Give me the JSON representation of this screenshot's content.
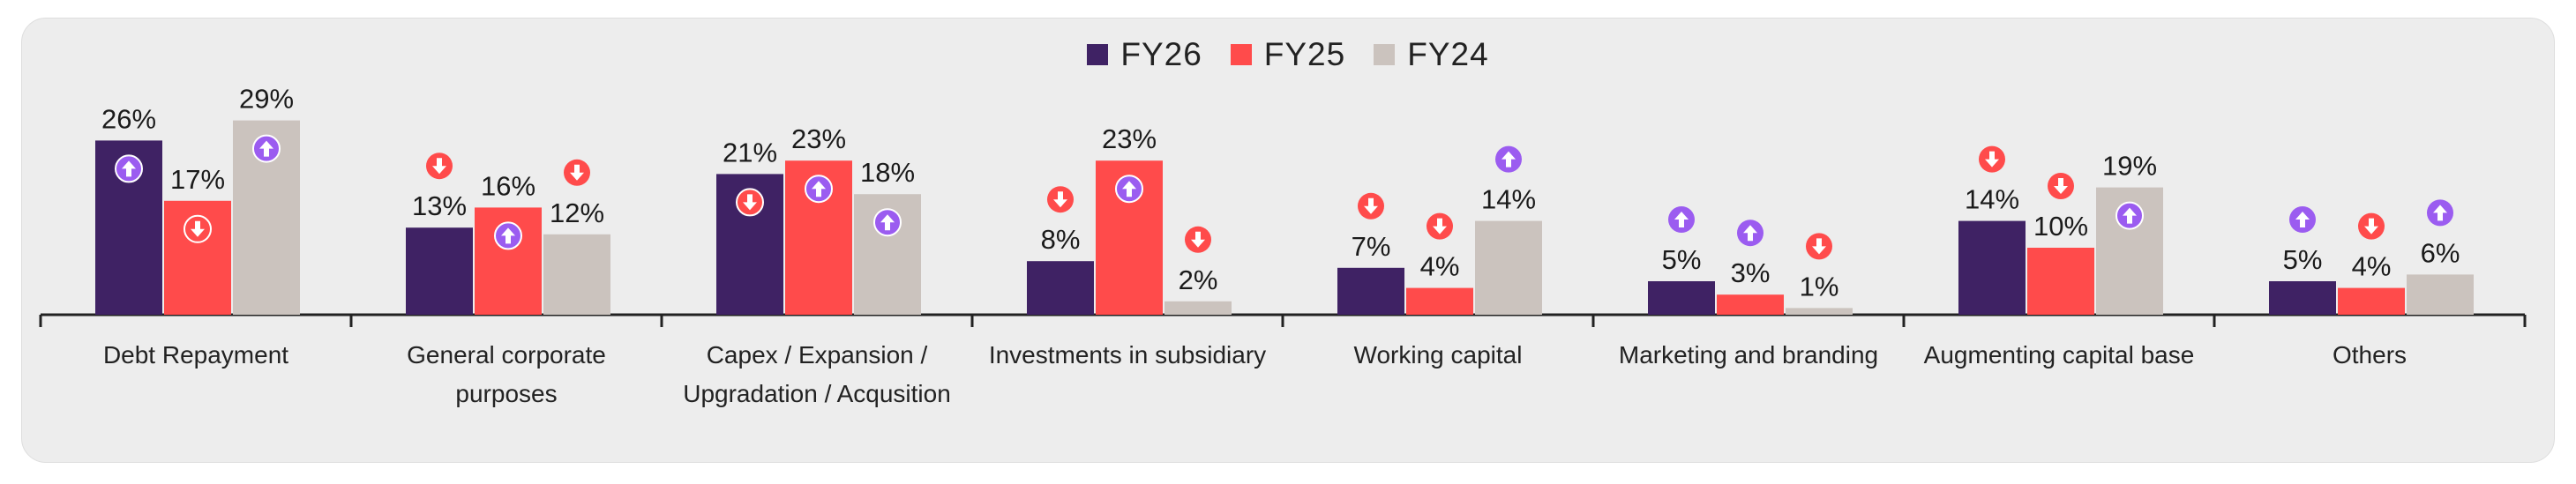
{
  "chart_data": {
    "type": "bar",
    "categories": [
      [
        "Debt Repayment"
      ],
      [
        "General corporate",
        "purposes"
      ],
      [
        "Capex / Expansion /",
        "Upgradation / Acqusition"
      ],
      [
        "Investments in subsidiary"
      ],
      [
        "Working capital"
      ],
      [
        "Marketing and branding"
      ],
      [
        "Augmenting capital base"
      ],
      [
        "Others"
      ]
    ],
    "series": [
      {
        "name": "FY26",
        "color": "#3f2264",
        "values": [
          26,
          13,
          21,
          8,
          7,
          5,
          14,
          5
        ],
        "labels": [
          "26%",
          "13%",
          "21%",
          "8%",
          "7%",
          "5%",
          "14%",
          "5%"
        ],
        "trend": [
          "up",
          "down",
          "down",
          "down",
          "down",
          "up",
          "down",
          "up"
        ]
      },
      {
        "name": "FY25",
        "color": "#ff4b4b",
        "values": [
          17,
          16,
          23,
          23,
          4,
          3,
          10,
          4
        ],
        "labels": [
          "17%",
          "16%",
          "23%",
          "23%",
          "4%",
          "3%",
          "10%",
          "4%"
        ],
        "trend": [
          "down",
          "up",
          "up",
          "up",
          "down",
          "up",
          "down",
          "down"
        ]
      },
      {
        "name": "FY24",
        "color": "#cbc3be",
        "values": [
          29,
          12,
          18,
          2,
          14,
          1,
          19,
          6
        ],
        "labels": [
          "29%",
          "12%",
          "18%",
          "2%",
          "14%",
          "1%",
          "19%",
          "6%"
        ],
        "trend": [
          "up",
          "down",
          "up",
          "down",
          "up",
          "down",
          "up",
          "up"
        ]
      }
    ],
    "ylim": [
      0,
      30
    ],
    "legend_position": "top-center",
    "trend_colors": {
      "up": "#9b5cf0",
      "down": "#ff4b4b"
    },
    "trend_icons": {
      "up": "arrow-up-icon",
      "down": "arrow-down-icon"
    }
  }
}
